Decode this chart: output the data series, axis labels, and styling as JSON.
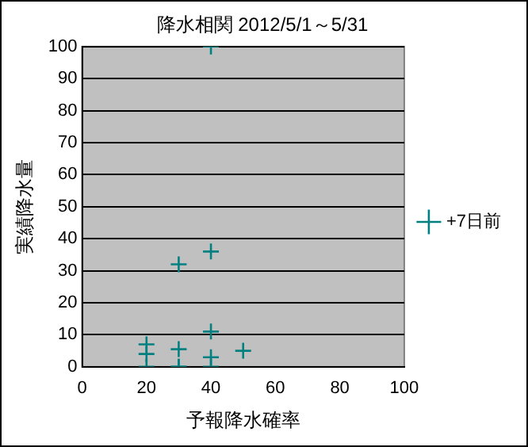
{
  "chart_data": {
    "type": "scatter",
    "title": "降水相関 2012/5/1～5/31",
    "xlabel": "予報降水確率",
    "ylabel": "実績降水量",
    "xlim": [
      0,
      100
    ],
    "xticks": [
      0,
      20,
      40,
      60,
      80,
      100
    ],
    "ylim": [
      0,
      100
    ],
    "yticks": [
      0,
      10,
      20,
      30,
      40,
      50,
      60,
      70,
      80,
      90,
      100
    ],
    "grid": "y",
    "legend": "right",
    "marker": "cross",
    "series": [
      {
        "name": "+7日前",
        "color": "#008080",
        "x": [
          20,
          20,
          20,
          30,
          30,
          30,
          30,
          40,
          40,
          40,
          40,
          40,
          50
        ],
        "values": [
          7,
          4,
          0,
          32,
          5.5,
          0,
          0,
          100,
          36,
          11,
          3,
          0,
          5
        ]
      }
    ]
  }
}
